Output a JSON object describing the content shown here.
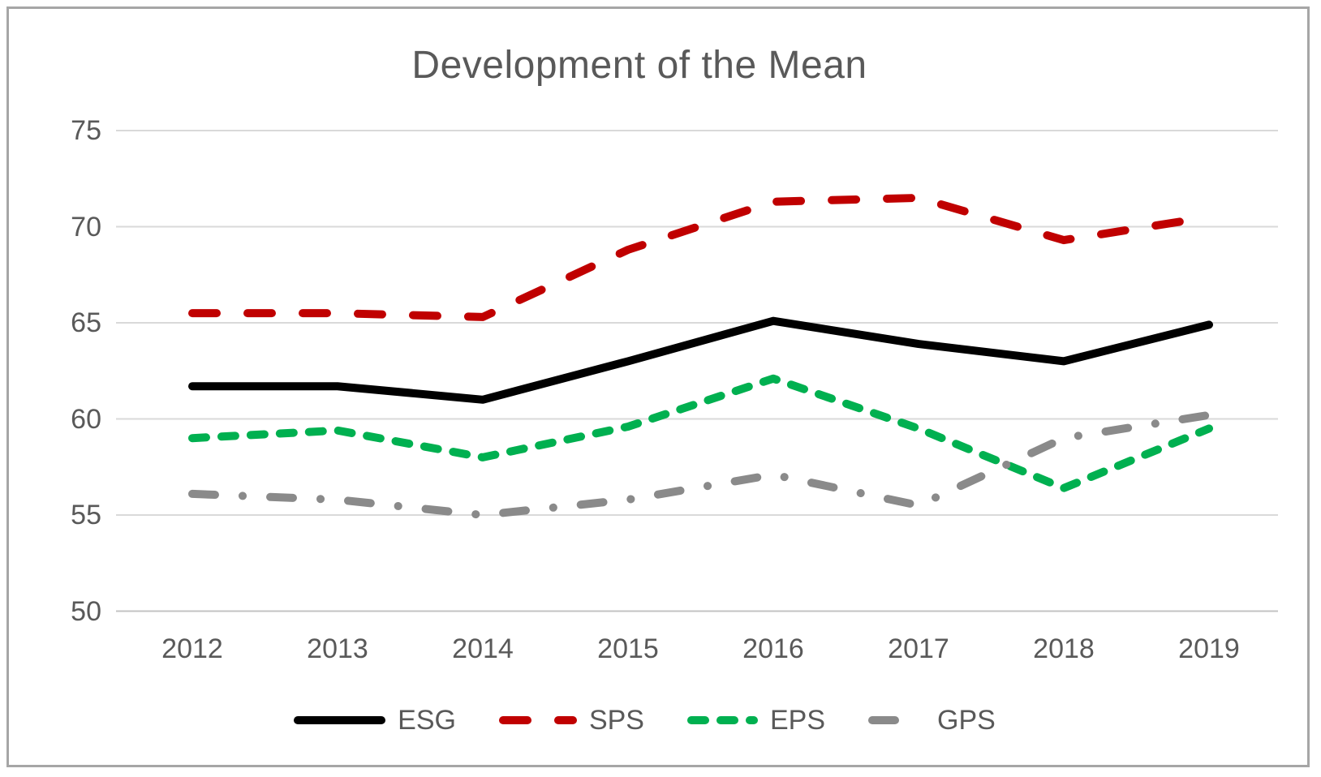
{
  "title": "Development of the Mean",
  "chart_data": {
    "type": "line",
    "title": "Development of the Mean",
    "categories": [
      "2012",
      "2013",
      "2014",
      "2015",
      "2016",
      "2017",
      "2018",
      "2019"
    ],
    "series": [
      {
        "name": "ESG",
        "color": "#000000",
        "line_style": "solid",
        "values": [
          61.7,
          61.7,
          61.0,
          63.0,
          65.1,
          63.9,
          63.0,
          64.9
        ]
      },
      {
        "name": "SPS",
        "color": "#c00000",
        "line_style": "long-dash",
        "values": [
          65.5,
          65.5,
          65.3,
          68.8,
          71.3,
          71.5,
          69.3,
          70.5
        ]
      },
      {
        "name": "EPS",
        "color": "#00b050",
        "line_style": "short-dash",
        "values": [
          59.0,
          59.4,
          58.0,
          59.6,
          62.1,
          59.5,
          56.4,
          59.5
        ]
      },
      {
        "name": "GPS",
        "color": "#8a8a8a",
        "line_style": "dash-dot",
        "values": [
          56.1,
          55.8,
          55.0,
          55.8,
          57.1,
          55.5,
          59.0,
          60.2
        ]
      }
    ],
    "xlabel": "",
    "ylabel": "",
    "ylim": [
      50,
      75
    ],
    "yticks": [
      75,
      70,
      65,
      60,
      55,
      50
    ],
    "grid": true,
    "legend_position": "bottom"
  },
  "colors": {
    "gridline": "#d9d9d9",
    "axis_line": "#c3c3c3",
    "text": "#595959",
    "frame_border": "#a6a6a6",
    "background": "#ffffff"
  }
}
